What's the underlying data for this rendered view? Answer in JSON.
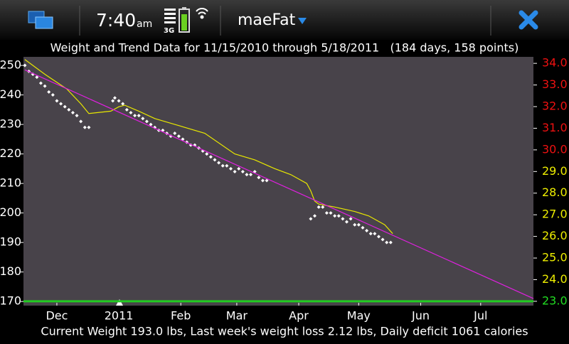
{
  "status_bar": {
    "time": "7:40",
    "ampm": "am",
    "network": "3G",
    "app_name": "maeFat"
  },
  "chart_data": {
    "type": "scatter",
    "title": "Weight and Trend Data for 11/15/2010 through 5/18/2011   (184 days, 158 points)",
    "footer": "Current Weight 193.0 lbs, Last week's weight loss 2.12 lbs, Daily deficit 1061 calories",
    "xlim": [
      -0.7,
      254.4
    ],
    "xticks": [
      {
        "value": 16,
        "label": "Dec"
      },
      {
        "value": 47,
        "label": "2011"
      },
      {
        "value": 78,
        "label": "Feb"
      },
      {
        "value": 106,
        "label": "Mar"
      },
      {
        "value": 137,
        "label": "Apr"
      },
      {
        "value": 167,
        "label": "May"
      },
      {
        "value": 198,
        "label": "Jun"
      },
      {
        "value": 228,
        "label": "Jul"
      }
    ],
    "ylim": [
      168.6,
      252.9
    ],
    "yticks": [
      170,
      180,
      190,
      200,
      210,
      220,
      230,
      240,
      250
    ],
    "y2lim": [
      22.8,
      34.3
    ],
    "y2ticks": [
      {
        "value": 23,
        "label": "23.0",
        "color": "#22dd22"
      },
      {
        "value": 24,
        "label": "24.0",
        "color": "#eeee00"
      },
      {
        "value": 25,
        "label": "25.0",
        "color": "#eeee00"
      },
      {
        "value": 26,
        "label": "26.0",
        "color": "#eeee00"
      },
      {
        "value": 27,
        "label": "27.0",
        "color": "#eeee00"
      },
      {
        "value": 28,
        "label": "28.0",
        "color": "#eeee00"
      },
      {
        "value": 29,
        "label": "29.0",
        "color": "#eeee00"
      },
      {
        "value": 30,
        "label": "30.0",
        "color": "#ee1111"
      },
      {
        "value": 31,
        "label": "31.0",
        "color": "#ee1111"
      },
      {
        "value": 32,
        "label": "32.0",
        "color": "#ee1111"
      },
      {
        "value": 33,
        "label": "33.0",
        "color": "#ee1111"
      },
      {
        "value": 34,
        "label": "34.0",
        "color": "#ee1111"
      }
    ],
    "target_line": {
      "value": 23,
      "axis": "y2",
      "color": "#22cc22"
    },
    "series": [
      {
        "style": "points",
        "color": "#ffffff",
        "x": [
          0,
          2,
          4,
          6,
          8,
          10,
          12,
          14,
          16,
          18,
          20,
          22,
          24,
          26,
          28,
          30,
          32,
          44,
          45,
          47,
          49,
          51,
          53,
          55,
          57,
          59,
          61,
          63,
          65,
          67,
          69,
          71,
          73,
          75,
          77,
          79,
          81,
          83,
          85,
          87,
          89,
          91,
          93,
          95,
          97,
          99,
          101,
          103,
          105,
          107,
          109,
          111,
          113,
          115,
          117,
          119,
          121,
          143,
          145,
          147,
          149,
          151,
          153,
          155,
          157,
          159,
          161,
          163,
          165,
          167,
          169,
          171,
          173,
          175,
          177,
          179,
          181,
          183
        ],
        "values": [
          250,
          248,
          247,
          246,
          244,
          243,
          241,
          240,
          238,
          237,
          236,
          235,
          234,
          233,
          231,
          229,
          229,
          238,
          239,
          238,
          237,
          235,
          234,
          233,
          233,
          232,
          231,
          230,
          229,
          228,
          228,
          227,
          226,
          227,
          226,
          225,
          224,
          223,
          223,
          222,
          221,
          220,
          219,
          218,
          217,
          216,
          216,
          215,
          214,
          215,
          214,
          213,
          213,
          214,
          212,
          211,
          211,
          198,
          199,
          202,
          202,
          200,
          200,
          199,
          199,
          198,
          197,
          198,
          196,
          196,
          195,
          194,
          193,
          193,
          192,
          191,
          190,
          190
        ]
      },
      {
        "style": "line",
        "color": "#e8e800",
        "x": [
          0,
          10,
          21,
          28,
          32,
          43,
          47,
          50,
          57,
          65,
          75,
          90,
          105,
          115,
          125,
          133,
          141,
          143,
          145,
          147,
          155,
          165,
          172,
          180,
          184
        ],
        "values": [
          252,
          247,
          242,
          237,
          233.7,
          234.5,
          236,
          236.5,
          234.5,
          232,
          230,
          227,
          220,
          218,
          215,
          213,
          210,
          207.5,
          204,
          203,
          202,
          200.5,
          199,
          196,
          193
        ]
      },
      {
        "style": "line",
        "color": "#e020e0",
        "x": [
          0,
          254.4
        ],
        "values": [
          248.5,
          171
        ]
      }
    ]
  }
}
